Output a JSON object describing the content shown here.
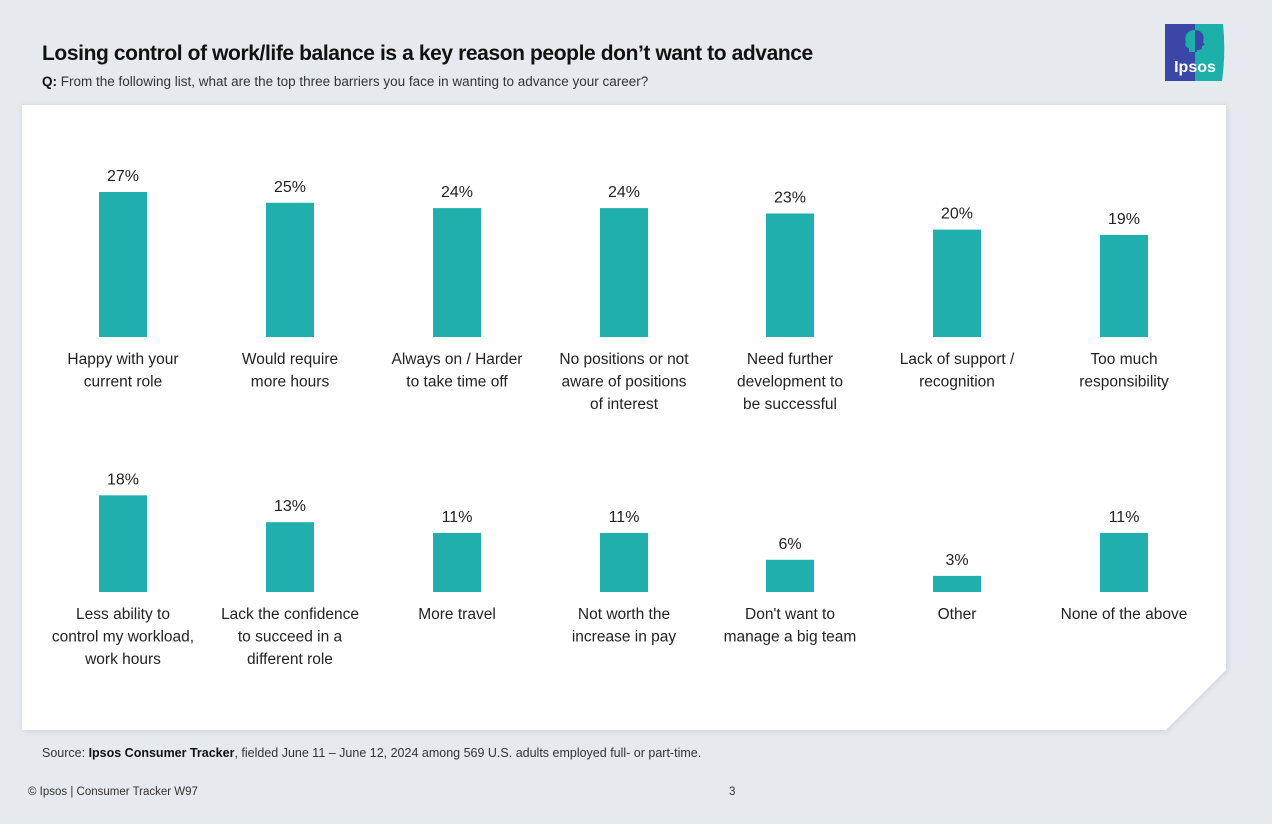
{
  "header": {
    "title": "Losing control of work/life balance is a key reason people don’t want to advance",
    "question_prefix": "Q:",
    "question_text": " From the following list, what are the top three barriers you face in wanting to advance your career?"
  },
  "logo": {
    "text": "Ipsos",
    "colors": {
      "left": "#3a47a6",
      "right": "#1bb1a8"
    }
  },
  "colors": {
    "bar": "#1fafad",
    "label": "#222222"
  },
  "chart_data": {
    "type": "bar",
    "title": "Losing control of work/life balance is a key reason people don’t want to advance",
    "subtitle": "Q: From the following list, what are the top three barriers you face in wanting to advance your career?",
    "xlabel": "",
    "ylabel": "",
    "ylim": [
      0,
      30
    ],
    "grid": false,
    "legend": "none",
    "value_format": "percent",
    "rows": [
      {
        "categories": [
          [
            "Happy with your",
            "current role"
          ],
          [
            "Would require",
            "more hours"
          ],
          [
            "Always on / Harder",
            "to take time off"
          ],
          [
            "No positions or not",
            "aware of positions",
            "of interest"
          ],
          [
            "Need further",
            "development to",
            "be successful"
          ],
          [
            "Lack of support /",
            "recognition"
          ],
          [
            "Too much",
            "responsibility"
          ]
        ],
        "values": [
          27,
          25,
          24,
          24,
          23,
          20,
          19
        ],
        "labels": [
          "27%",
          "25%",
          "24%",
          "24%",
          "23%",
          "20%",
          "19%"
        ]
      },
      {
        "categories": [
          [
            "Less ability to",
            "control my workload,",
            "work hours"
          ],
          [
            "Lack the confidence",
            "to succeed in a",
            "different role"
          ],
          [
            "More travel"
          ],
          [
            "Not worth the",
            "increase in pay"
          ],
          [
            "Don't want to",
            "manage a big team"
          ],
          [
            "Other"
          ],
          [
            "None of the above"
          ]
        ],
        "values": [
          18,
          13,
          11,
          11,
          6,
          3,
          11
        ],
        "labels": [
          "18%",
          "13%",
          "11%",
          "11%",
          "6%",
          "3%",
          "11%"
        ]
      }
    ]
  },
  "footer": {
    "source_prefix": "Source: ",
    "source_bold": "Ipsos Consumer Tracker",
    "source_rest": ", fielded June 11 – June 12, 2024 among 569 U.S. adults employed full- or part-time.",
    "copyright": "© Ipsos | Consumer Tracker W97",
    "page_number": "3"
  }
}
